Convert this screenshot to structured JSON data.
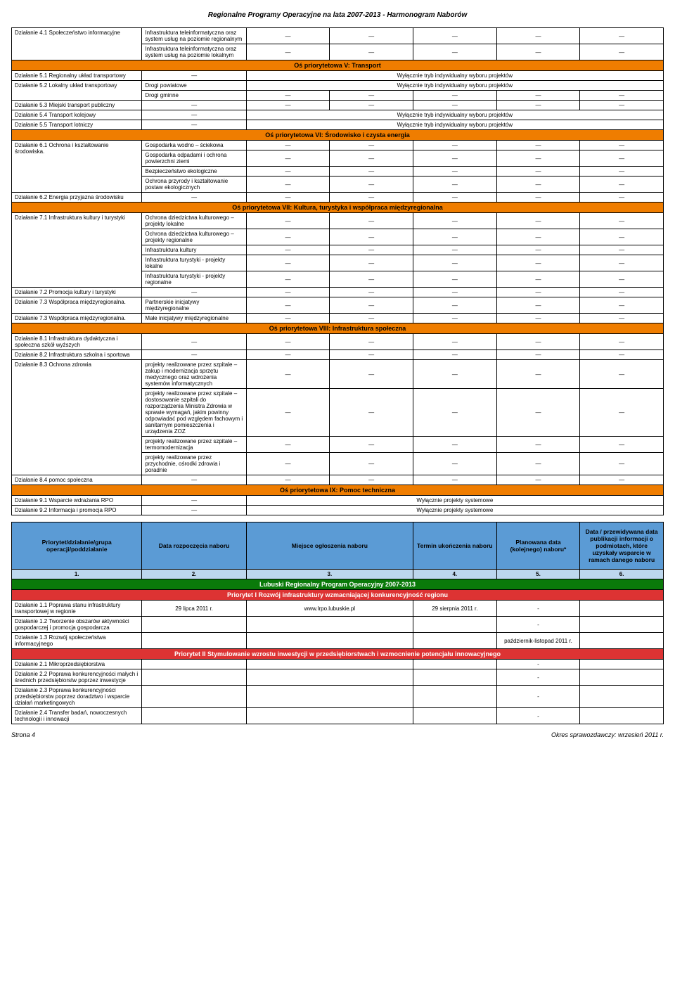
{
  "page_title": "Regionalne Programy Operacyjne na lata 2007-2013 - Harmonogram Naborów",
  "dash": "—",
  "note_individual": "Wyłącznie tryb indywidualny wyboru projektów",
  "note_system": "Wyłącznie projekty systemowe",
  "axis5": "Oś priorytetowa V: Transport",
  "axis6": "Oś priorytetowa VI: Środowisko i czysta energia",
  "axis7": "Oś priorytetowa VII: Kultura, turystyka i współpraca międzyregionalna",
  "axis8": "Oś priorytetowa VIII: Infrastruktura społeczna",
  "axis9": "Oś priorytetowa IX: Pomoc techniczna",
  "d41": "Działanie 4.1 Społeczeństwo informacyjne",
  "d41_sub1": "Infrastruktura teleinformatyczna oraz system usług na poziomie regionalnym",
  "d41_sub2": "Infrastruktura teleinformatyczna oraz system usług na poziomie lokalnym",
  "d51": "Działanie 5.1 Regionalny układ transportowy",
  "d52": "Działanie 5.2 Lokalny układ transportowy",
  "d52_sub1": "Drogi powiatowe",
  "d52_sub2": "Drogi gminne",
  "d53": "Działanie 5.3 Miejski transport publiczny",
  "d54": "Działanie 5.4 Transport kolejowy",
  "d55": "Działanie 5.5 Transport lotniczy",
  "d61": "Działanie 6.1 Ochrona i kształtowanie środowiska.",
  "d61_sub1": "Gospodarka wodno – ściekowa",
  "d61_sub2": "Gospodarka odpadami i ochrona powierzchni ziemi",
  "d61_sub3": "Bezpieczeństwo ekologiczne",
  "d61_sub4": "Ochrona przyrody i kształtowanie postaw ekologicznych",
  "d62": "Działanie 6.2 Energia przyjazna środowisku",
  "d71": "Działanie 7.1 Infrastruktura kultury i turystyki",
  "d71_sub1": "Ochrona dziedzictwa kulturowego – projekty lokalne",
  "d71_sub2": "Ochrona dziedzictwa kulturowego – projekty regionalne",
  "d71_sub3": "Infrastruktura kultury",
  "d71_sub4": "Infrastruktura turystyki - projekty lokalne",
  "d71_sub5": " Infrastruktura turystyki - projekty regionalne",
  "d72": "Działanie 7.2 Promocja kultury i turystyki",
  "d73a": "Działanie 7.3 Współpraca międzyregionalna.",
  "d73a_sub": "Partnerskie inicjatywy międzyregionalne",
  "d73b": "Działanie 7.3 Współpraca międzyregionalna.",
  "d73b_sub": "Małe inicjatywy międzyregionalne",
  "d81": "Działanie 8.1 Infrastruktura dydaktyczna i społeczna szkół wyższych",
  "d82": "Działanie 8.2 Infrastruktura szkolna i sportowa",
  "d83": "Działanie 8.3 Ochrona zdrowia",
  "d83_sub1": "projekty realizowane przez szpitale – zakup i modernizacja sprzętu medycznego oraz wdrożenia systemów informatycznych",
  "d83_sub2": "projekty realizowane przez szpitale – dostosowanie szpitali do rozporządzenia Ministra Zdrowia w sprawie wymagań, jakim powinny odpowiadać pod względem fachowym i sanitarnym pomieszczenia i urządzenia ZOZ",
  "d83_sub3": "projekty realizowane przez szpitale – termomodernizacja",
  "d83_sub4": "projekty realizowane przez przychodnie, ośrodki zdrowia i poradnie",
  "d84": "Działanie 8.4 pomoc społeczna",
  "d91": "Działanie 9.1 Wsparcie wdrażania RPO",
  "d92": "Działanie 9.2 Informacja i promocja RPO",
  "lower_headers": {
    "c1": "Priorytet/działanie/grupa operacji/poddziałanie",
    "c2": "Data rozpoczęcia naboru",
    "c3": "Miejsce ogłoszenia naboru",
    "c4": "Termin ukończenia naboru",
    "c5": "Planowana data (kolejnego) naboru*",
    "c6": "Data / przewidywana data publikacji informacji o podmiotach, które uzyskały wsparcie w ramach danego naboru"
  },
  "nums": {
    "n1": "1.",
    "n2": "2.",
    "n3": "3.",
    "n4": "4.",
    "n5": "5.",
    "n6": "6."
  },
  "lubuski_title": "Lubuski Regionalny Program Operacyjny 2007-2013",
  "priorytet1": "Priorytet I Rozwój infrastruktury wzmacniającej konkurencyjność regionu",
  "priorytet2": "Priorytet II Stymulowanie wzrostu inwestycji w przedsiębiorstwach i wzmocnienie potencjału innowacyjnego",
  "l_d11": "Działanie 1.1 Poprawa stanu infrastruktury transportowej w regionie",
  "l_d11_date1": "29 lipca 2011 r.",
  "l_d11_url": "www.lrpo.lubuskie.pl",
  "l_d11_date2": "29 sierpnia 2011 r.",
  "l_d12": "Działanie 1.2 Tworzenie obszarów aktywności gospodarczej i promocja gospodarcza",
  "l_d13": "Działanie 1.3 Rozwój społeczeństwa informacyjnego",
  "l_d13_date": "październik-listopad 2011 r.",
  "l_d21": "Działanie 2.1 Mikroprzedsiębiorstwa",
  "l_d22": "Działanie 2.2 Poprawa konkurencyjności małych i średnich przedsiębiorstw poprzez inwestycje",
  "l_d23": "Działanie 2.3 Poprawa konkurencyjności przedsiębiorstw poprzez doradztwo i wsparcie działań marketingowych",
  "l_d24": "Działanie 2.4 Transfer badań, nowoczesnych technologii i innowacji",
  "footer_left": "Strona 4",
  "footer_right": "Okres sprawozdawczy: wrzesień 2011 r.",
  "small_dash": "-"
}
